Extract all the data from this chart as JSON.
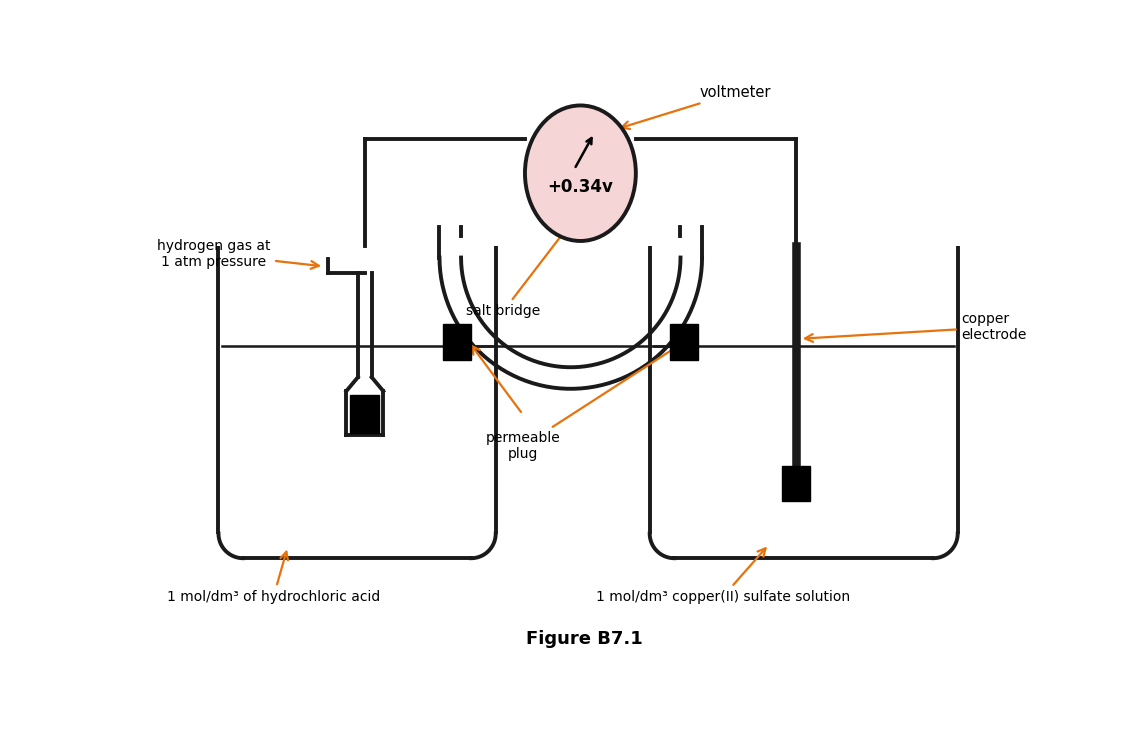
{
  "title": "Figure B7.1",
  "background_color": "#ffffff",
  "line_color": "#1a1a1a",
  "arrow_color": "#e8720c",
  "voltmeter_fill": "#f5d5d5",
  "voltmeter_text": "+0.34v",
  "voltmeter_label": "voltmeter",
  "label_hydrogen": "hydrogen gas at\n1 atm pressure",
  "label_hcl": "1 mol/dm³ of hydrochloric acid",
  "label_cuso4": "1 mol/dm³ copper(II) sulfate solution",
  "label_salt_bridge": "salt bridge",
  "label_permeable_plug": "permeable\nplug",
  "label_copper_electrode": "copper\nelectrode",
  "lw": 2.8
}
